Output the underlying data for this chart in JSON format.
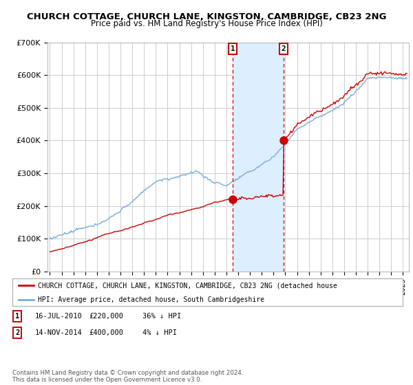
{
  "title": "CHURCH COTTAGE, CHURCH LANE, KINGSTON, CAMBRIDGE, CB23 2NG",
  "subtitle": "Price paid vs. HM Land Registry's House Price Index (HPI)",
  "title_fontsize": 9.5,
  "subtitle_fontsize": 8.5,
  "ylim": [
    0,
    700000
  ],
  "xlim_start": 1994.8,
  "xlim_end": 2025.5,
  "yticks": [
    0,
    100000,
    200000,
    300000,
    400000,
    500000,
    600000,
    700000
  ],
  "ytick_labels": [
    "£0",
    "£100K",
    "£200K",
    "£300K",
    "£400K",
    "£500K",
    "£600K",
    "£700K"
  ],
  "sale1_year": 2010.54,
  "sale1_price": 220000,
  "sale2_year": 2014.87,
  "sale2_price": 400000,
  "red_line_color": "#cc0000",
  "blue_line_color": "#7aaddc",
  "shade_color": "#ddeeff",
  "grid_color": "#cccccc",
  "legend_label_red": "CHURCH COTTAGE, CHURCH LANE, KINGSTON, CAMBRIDGE, CB23 2NG (detached house",
  "legend_label_blue": "HPI: Average price, detached house, South Cambridgeshire",
  "table_row1": [
    "1",
    "16-JUL-2010",
    "£220,000",
    "36% ↓ HPI"
  ],
  "table_row2": [
    "2",
    "14-NOV-2014",
    "£400,000",
    "4% ↓ HPI"
  ],
  "footer": "Contains HM Land Registry data © Crown copyright and database right 2024.\nThis data is licensed under the Open Government Licence v3.0."
}
